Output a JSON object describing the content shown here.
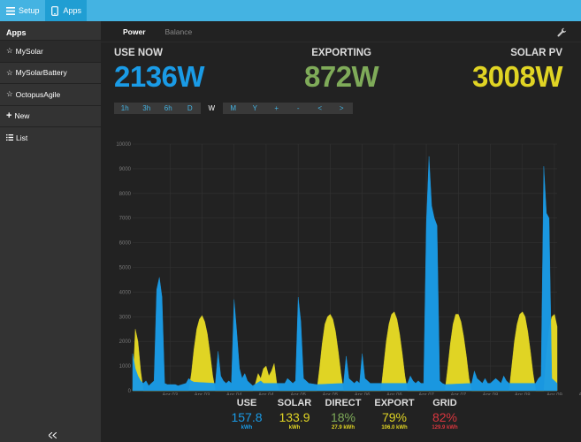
{
  "topbar": {
    "setup_label": "Setup",
    "apps_label": "Apps"
  },
  "sidebar": {
    "title": "Apps",
    "items": [
      {
        "label": "MySolar",
        "icon": "star-icon",
        "active": true
      },
      {
        "label": "MySolarBattery",
        "icon": "star-icon"
      },
      {
        "label": "OctopusAgile",
        "icon": "star-icon"
      },
      {
        "label": "New",
        "icon": "plus-icon"
      },
      {
        "label": "List",
        "icon": "list-icon"
      }
    ]
  },
  "tabs": {
    "power": "Power",
    "balance": "Balance"
  },
  "stats": {
    "use_now": {
      "label": "USE NOW",
      "value": "2136W",
      "color": "#1a9be6"
    },
    "exporting": {
      "label": "EXPORTING",
      "value": "872W",
      "color": "#7fab59"
    },
    "solar_pv": {
      "label": "SOLAR PV",
      "value": "3008W",
      "color": "#e0d424"
    }
  },
  "range_buttons": [
    "1h",
    "3h",
    "6h",
    "D",
    "W",
    "M",
    "Y",
    "+",
    "-",
    "<",
    ">"
  ],
  "range_active": "W",
  "chart_data": {
    "type": "area",
    "ylim": [
      0,
      10000
    ],
    "yticks": [
      "0",
      "1000",
      "2000",
      "3000",
      "4000",
      "5000",
      "6000",
      "7000",
      "8000",
      "9000",
      "10000"
    ],
    "xticks": [
      [
        "Apr 03",
        "01:00"
      ],
      [
        "Apr 03",
        "13:00"
      ],
      [
        "Apr 04",
        "01:00"
      ],
      [
        "Apr 04",
        "13:00"
      ],
      [
        "Apr 05",
        "01:00"
      ],
      [
        "Apr 05",
        "13:00"
      ],
      [
        "Apr 06",
        "01:00"
      ],
      [
        "Apr 06",
        "13:00"
      ],
      [
        "Apr 07",
        "01:00"
      ],
      [
        "Apr 07",
        "13:00"
      ],
      [
        "Apr 08",
        "01:00"
      ],
      [
        "Apr 08",
        "13:00"
      ],
      [
        "Apr 09",
        "01:00"
      ],
      [
        "Apr 09",
        "13:00"
      ]
    ],
    "x_hours_range": [
      -13,
      146
    ],
    "series": [
      {
        "color": "#e0d424",
        "points": [
          [
            -13,
            0
          ],
          [
            -12,
            2500
          ],
          [
            -11,
            2000
          ],
          [
            -10,
            800
          ],
          [
            -9,
            0
          ],
          [
            8,
            0
          ],
          [
            9,
            700
          ],
          [
            10,
            1700
          ],
          [
            11,
            2500
          ],
          [
            12,
            2900
          ],
          [
            13,
            3050
          ],
          [
            14,
            2800
          ],
          [
            15,
            2300
          ],
          [
            16,
            1500
          ],
          [
            17,
            600
          ],
          [
            18,
            0
          ],
          [
            32,
            0
          ],
          [
            33,
            300
          ],
          [
            34,
            700
          ],
          [
            35,
            500
          ],
          [
            36,
            900
          ],
          [
            37,
            1000
          ],
          [
            38,
            600
          ],
          [
            39,
            800
          ],
          [
            40,
            1100
          ],
          [
            41,
            300
          ],
          [
            42,
            0
          ],
          [
            56,
            0
          ],
          [
            57,
            900
          ],
          [
            58,
            1900
          ],
          [
            59,
            2700
          ],
          [
            60,
            3000
          ],
          [
            61,
            3100
          ],
          [
            62,
            2900
          ],
          [
            63,
            2400
          ],
          [
            64,
            1600
          ],
          [
            65,
            700
          ],
          [
            66,
            0
          ],
          [
            80,
            0
          ],
          [
            81,
            1000
          ],
          [
            82,
            2000
          ],
          [
            83,
            2700
          ],
          [
            84,
            3100
          ],
          [
            85,
            3200
          ],
          [
            86,
            2900
          ],
          [
            87,
            2300
          ],
          [
            88,
            1500
          ],
          [
            89,
            600
          ],
          [
            90,
            0
          ],
          [
            104,
            0
          ],
          [
            105,
            900
          ],
          [
            106,
            1900
          ],
          [
            107,
            2700
          ],
          [
            108,
            3100
          ],
          [
            109,
            3100
          ],
          [
            110,
            2800
          ],
          [
            111,
            2200
          ],
          [
            112,
            1400
          ],
          [
            113,
            500
          ],
          [
            114,
            0
          ],
          [
            128,
            0
          ],
          [
            129,
            1000
          ],
          [
            130,
            2000
          ],
          [
            131,
            2700
          ],
          [
            132,
            3100
          ],
          [
            133,
            3200
          ],
          [
            134,
            3000
          ],
          [
            135,
            2400
          ],
          [
            136,
            1600
          ],
          [
            137,
            700
          ],
          [
            138,
            0
          ],
          [
            141,
            0
          ],
          [
            142,
            1500
          ],
          [
            143,
            2500
          ],
          [
            144,
            3000
          ],
          [
            145,
            3100
          ],
          [
            146,
            2600
          ]
        ]
      },
      {
        "color": "#1a9be6",
        "points": [
          [
            -13,
            1500
          ],
          [
            -12,
            900
          ],
          [
            -11,
            600
          ],
          [
            -10,
            400
          ],
          [
            -9,
            300
          ],
          [
            -8,
            400
          ],
          [
            -7,
            200
          ],
          [
            -6,
            300
          ],
          [
            -5,
            400
          ],
          [
            -4,
            4100
          ],
          [
            -3,
            4600
          ],
          [
            -2,
            3800
          ],
          [
            -1,
            300
          ],
          [
            0,
            250
          ],
          [
            3,
            250
          ],
          [
            4,
            200
          ],
          [
            7,
            300
          ],
          [
            8,
            500
          ],
          [
            9,
            400
          ],
          [
            10,
            350
          ],
          [
            18,
            300
          ],
          [
            19,
            1600
          ],
          [
            20,
            600
          ],
          [
            21,
            400
          ],
          [
            22,
            300
          ],
          [
            23,
            400
          ],
          [
            24,
            300
          ],
          [
            25,
            3700
          ],
          [
            26,
            2400
          ],
          [
            27,
            900
          ],
          [
            28,
            500
          ],
          [
            29,
            700
          ],
          [
            30,
            400
          ],
          [
            31,
            300
          ],
          [
            32,
            200
          ],
          [
            35,
            400
          ],
          [
            36,
            300
          ],
          [
            44,
            300
          ],
          [
            45,
            500
          ],
          [
            46,
            400
          ],
          [
            47,
            300
          ],
          [
            48,
            400
          ],
          [
            49,
            3800
          ],
          [
            50,
            2800
          ],
          [
            51,
            500
          ],
          [
            52,
            400
          ],
          [
            53,
            300
          ],
          [
            56,
            250
          ],
          [
            66,
            300
          ],
          [
            67,
            1400
          ],
          [
            68,
            500
          ],
          [
            69,
            400
          ],
          [
            70,
            300
          ],
          [
            71,
            400
          ],
          [
            72,
            300
          ],
          [
            73,
            1500
          ],
          [
            74,
            500
          ],
          [
            75,
            400
          ],
          [
            76,
            300
          ],
          [
            80,
            300
          ],
          [
            90,
            300
          ],
          [
            91,
            600
          ],
          [
            92,
            400
          ],
          [
            93,
            300
          ],
          [
            94,
            400
          ],
          [
            95,
            300
          ],
          [
            96,
            300
          ],
          [
            97,
            6800
          ],
          [
            98,
            9500
          ],
          [
            99,
            7500
          ],
          [
            100,
            7000
          ],
          [
            101,
            6700
          ],
          [
            102,
            400
          ],
          [
            103,
            300
          ],
          [
            104,
            250
          ],
          [
            114,
            300
          ],
          [
            115,
            800
          ],
          [
            116,
            500
          ],
          [
            117,
            400
          ],
          [
            118,
            300
          ],
          [
            119,
            500
          ],
          [
            120,
            300
          ],
          [
            121,
            300
          ],
          [
            122,
            400
          ],
          [
            123,
            500
          ],
          [
            124,
            400
          ],
          [
            125,
            300
          ],
          [
            126,
            600
          ],
          [
            127,
            400
          ],
          [
            128,
            300
          ],
          [
            138,
            300
          ],
          [
            139,
            500
          ],
          [
            140,
            600
          ],
          [
            141,
            9100
          ],
          [
            142,
            7200
          ],
          [
            143,
            7000
          ],
          [
            144,
            500
          ],
          [
            145,
            400
          ],
          [
            146,
            300
          ]
        ]
      }
    ]
  },
  "totals": [
    {
      "key": "use",
      "label": "USE",
      "value": "157.8",
      "unit": "kWh",
      "color": "#1a9be6",
      "unitColor": "#1a9be6"
    },
    {
      "key": "solar",
      "label": "SOLAR",
      "value": "133.9",
      "unit": "kWh",
      "color": "#e0d424",
      "unitColor": "#e0d424"
    },
    {
      "key": "direct",
      "label": "DIRECT",
      "value": "18%",
      "unit": "27.9 kWh",
      "color": "#7fab59",
      "unitColor": "#e0d424"
    },
    {
      "key": "export",
      "label": "EXPORT",
      "value": "79%",
      "unit": "106.0 kWh",
      "color": "#e0d424",
      "unitColor": "#e0d424"
    },
    {
      "key": "grid",
      "label": "GRID",
      "value": "82%",
      "unit": "129.9 kWh",
      "color": "#d9363e",
      "unitColor": "#d9363e"
    }
  ]
}
